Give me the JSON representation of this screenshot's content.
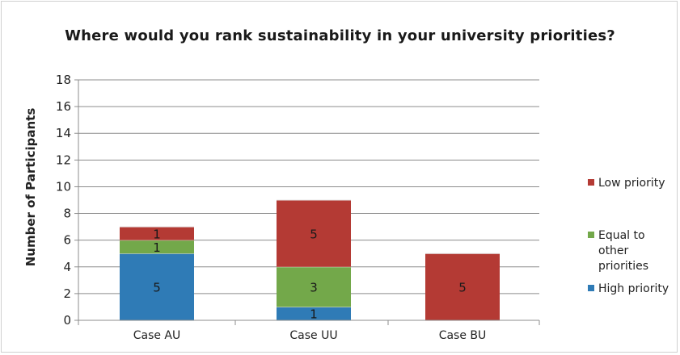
{
  "chart_data": {
    "type": "bar",
    "stacked": true,
    "title": "Where would you rank sustainability in your university priorities?",
    "xlabel": "",
    "ylabel": "Number of Participants",
    "ylim": [
      0,
      18
    ],
    "yticks": [
      0,
      2,
      4,
      6,
      8,
      10,
      12,
      14,
      16,
      18
    ],
    "grid": true,
    "legend_position": "right",
    "categories": [
      "Case AU",
      "Case UU",
      "Case BU"
    ],
    "series": [
      {
        "name": "High priority",
        "values": [
          5,
          1,
          0
        ],
        "color": "#2f7bb6"
      },
      {
        "name": "Equal to other priorities",
        "values": [
          1,
          3,
          0
        ],
        "color": "#73a84a"
      },
      {
        "name": "Low priority",
        "values": [
          1,
          5,
          5
        ],
        "color": "#b43a34"
      }
    ],
    "legend_order": [
      "Low priority",
      "Equal to other priorities",
      "High priority"
    ]
  }
}
